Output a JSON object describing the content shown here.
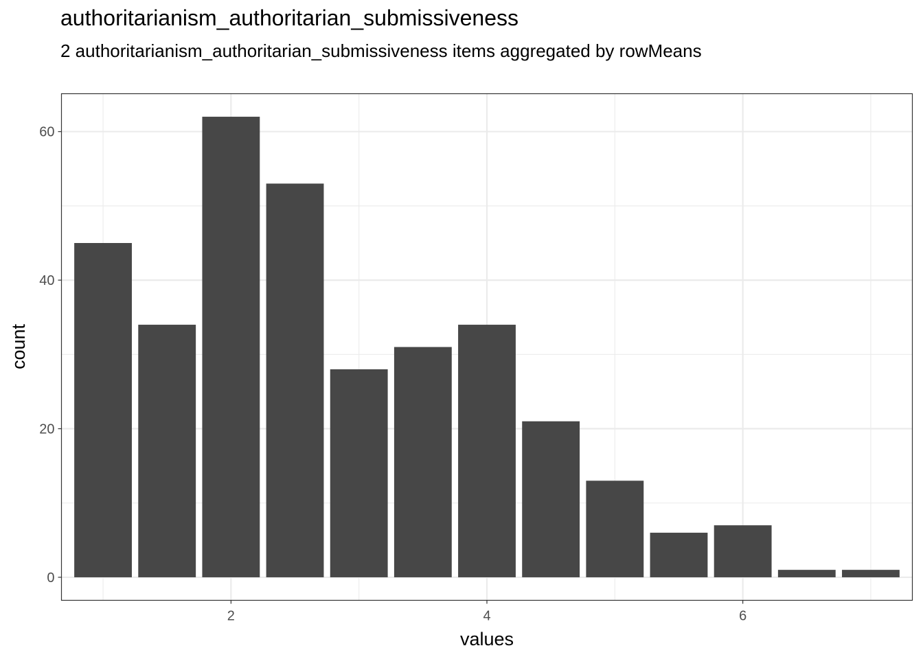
{
  "chart_data": {
    "type": "bar",
    "title": "authoritarianism_authoritarian_submissiveness",
    "subtitle": "2 authoritarianism_authoritarian_submissiveness items aggregated by rowMeans",
    "xlabel": "values",
    "ylabel": "count",
    "x": [
      1,
      1.5,
      2,
      2.5,
      3,
      3.5,
      4,
      4.5,
      5,
      5.5,
      6,
      6.5,
      7
    ],
    "values": [
      45,
      34,
      62,
      53,
      28,
      31,
      34,
      21,
      13,
      6,
      7,
      1,
      1
    ],
    "bar_width": 0.45,
    "xlim": [
      0.675,
      7.325
    ],
    "ylim": [
      -3.1,
      65.1
    ],
    "x_ticks": [
      2,
      4,
      6
    ],
    "y_ticks": [
      0,
      20,
      40,
      60
    ],
    "x_minor_ticks": [
      1,
      3,
      5,
      7
    ],
    "y_minor_ticks": [
      10,
      30,
      50
    ],
    "grid": true,
    "bar_color": "#474747",
    "grid_color": "#ebebeb",
    "theme": "bw"
  }
}
